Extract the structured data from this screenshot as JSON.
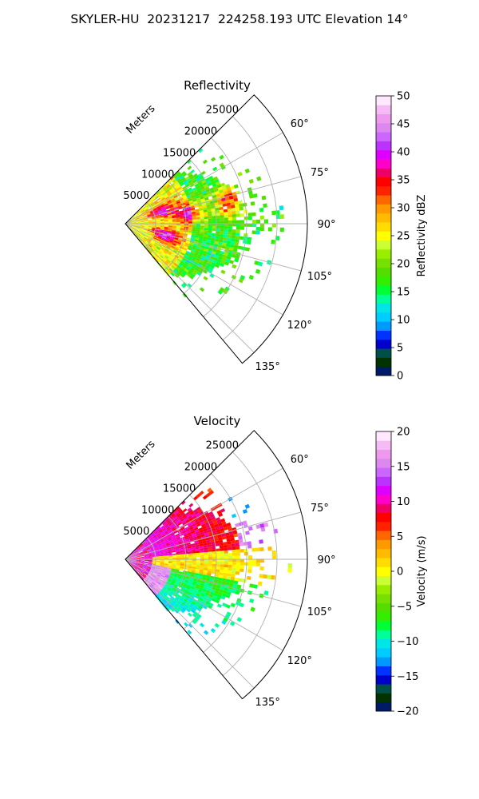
{
  "suptitle": "SKYLER-HU  20231217  224258.193 UTC Elevation 14°",
  "chart_data": [
    {
      "type": "polar-sector",
      "title": "Reflectivity",
      "radial_label": "Meters",
      "radial_ticks": [
        5000,
        10000,
        15000,
        20000,
        25000
      ],
      "radial_max": 30000,
      "angle_ticks": [
        "60°",
        "75°",
        "90°",
        "105°",
        "120°",
        "135°"
      ],
      "angle_tick_values": [
        60,
        75,
        90,
        105,
        120,
        135
      ],
      "theta_range": [
        45,
        140
      ],
      "grid": true,
      "colorbar": {
        "label": "Reflectivity dBZ",
        "min": 0,
        "max": 50,
        "ticks": [
          "0",
          "5",
          "10",
          "15",
          "20",
          "25",
          "30",
          "35",
          "40",
          "45",
          "50"
        ],
        "colors": [
          "#001a66",
          "#003300",
          "#00504a",
          "#0000cc",
          "#0033ff",
          "#0099ff",
          "#00ccff",
          "#00e6e6",
          "#00ff99",
          "#00ff33",
          "#33ee00",
          "#55dd00",
          "#77e000",
          "#99ee00",
          "#ccff33",
          "#ffff00",
          "#ffdd00",
          "#ffbb00",
          "#ff9900",
          "#ff6600",
          "#ff2200",
          "#ff0000",
          "#ee0066",
          "#ff00cc",
          "#dd00ff",
          "#bb33ff",
          "#cc66ff",
          "#dd88ee",
          "#ee99ee",
          "#f5bbf5",
          "#fde8fd"
        ]
      }
    },
    {
      "type": "polar-sector",
      "title": "Velocity",
      "radial_label": "Meters",
      "radial_ticks": [
        5000,
        10000,
        15000,
        20000,
        25000
      ],
      "radial_max": 30000,
      "angle_ticks": [
        "60°",
        "75°",
        "90°",
        "105°",
        "120°",
        "135°"
      ],
      "angle_tick_values": [
        60,
        75,
        90,
        105,
        120,
        135
      ],
      "theta_range": [
        45,
        140
      ],
      "grid": true,
      "colorbar": {
        "label": "Velocity (m/s)",
        "min": -20,
        "max": 20,
        "ticks": [
          "−20",
          "−15",
          "−10",
          "−5",
          "0",
          "5",
          "10",
          "15",
          "20"
        ],
        "colors": [
          "#001a66",
          "#003300",
          "#00504a",
          "#0000cc",
          "#0033ff",
          "#0099ff",
          "#00ccff",
          "#00e6e6",
          "#00ff99",
          "#00ff33",
          "#33ee00",
          "#55dd00",
          "#77e000",
          "#99ee00",
          "#ccff33",
          "#ffff00",
          "#ffdd00",
          "#ffbb00",
          "#ff9900",
          "#ff6600",
          "#ff2200",
          "#ff0000",
          "#ee0066",
          "#ff00cc",
          "#dd00ff",
          "#bb33ff",
          "#cc66ff",
          "#dd88ee",
          "#ee99ee",
          "#f5bbf5",
          "#fde8fd"
        ]
      }
    }
  ]
}
